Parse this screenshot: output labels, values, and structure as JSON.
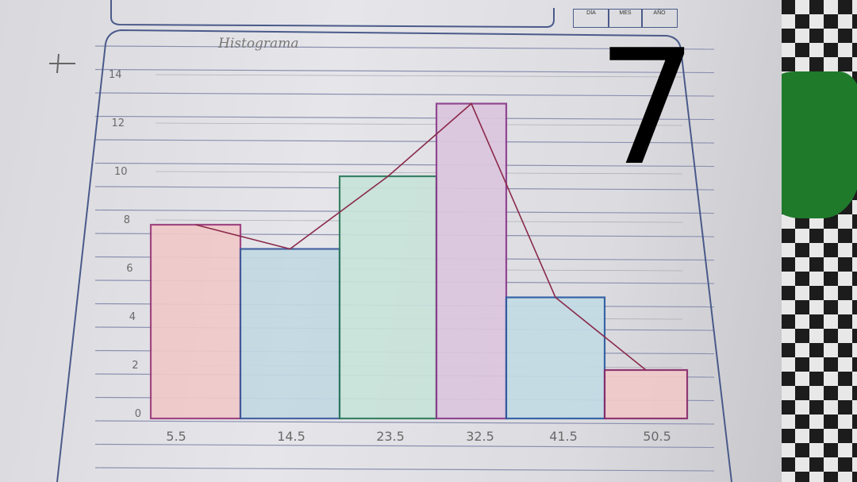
{
  "chart_data": {
    "type": "bar",
    "title": "Histograma",
    "categories": [
      "5.5",
      "14.5",
      "23.5",
      "32.5",
      "41.5",
      "50.5"
    ],
    "values": [
      8,
      7,
      10,
      13,
      5,
      2
    ],
    "yticks": [
      0,
      2,
      4,
      6,
      8,
      10,
      12,
      14
    ],
    "ylim": [
      0,
      14
    ],
    "frequency_polygon": true,
    "grid": true,
    "bar_colors": [
      "#f1c9c9",
      "#c3d9e3",
      "#c8e3da",
      "#dcc6de",
      "#c3dbe5",
      "#f1c9c9"
    ],
    "bar_outlines": [
      "#9a3a7a",
      "#3a5a9a",
      "#2a7a5a",
      "#8a3a8a",
      "#2a5aa0",
      "#8a2a6a"
    ],
    "line_color": "#8a2a4a"
  },
  "header": {
    "date_labels": [
      "DÍA",
      "MES",
      "AÑO"
    ]
  },
  "page_number": "7",
  "colors": {
    "ruled_line": "#8b8fb0",
    "frame": "#4a5a8a",
    "pencil": "#6a6a6a"
  }
}
